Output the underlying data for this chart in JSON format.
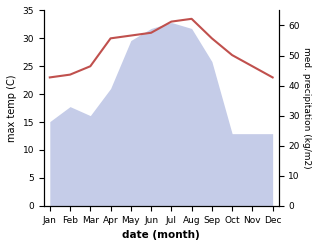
{
  "months": [
    "Jan",
    "Feb",
    "Mar",
    "Apr",
    "May",
    "Jun",
    "Jul",
    "Aug",
    "Sep",
    "Oct",
    "Nov",
    "Dec"
  ],
  "temperature": [
    23,
    23.5,
    25,
    30,
    30.5,
    31,
    33,
    33.5,
    30,
    27,
    25,
    23
  ],
  "precipitation_mm": [
    28,
    33,
    30,
    39,
    55,
    59,
    61,
    59,
    48,
    24,
    24,
    24
  ],
  "temp_color": "#c0504d",
  "precip_fill_color": "#c5cce8",
  "ylabel_left": "max temp (C)",
  "ylabel_right": "med. precipitation (kg/m2)",
  "xlabel": "date (month)",
  "ylim_left": [
    0,
    35
  ],
  "ylim_right": [
    0,
    65
  ],
  "yticks_left": [
    0,
    5,
    10,
    15,
    20,
    25,
    30,
    35
  ],
  "yticks_right": [
    0,
    10,
    20,
    30,
    40,
    50,
    60
  ],
  "bg_color": "#ffffff"
}
